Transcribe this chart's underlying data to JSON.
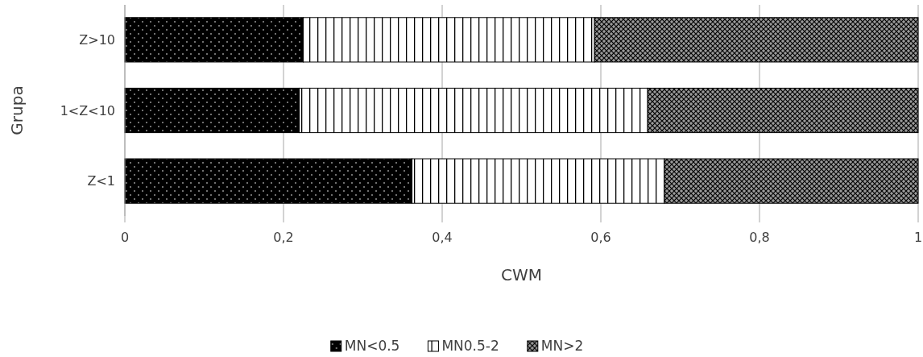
{
  "chart_data": {
    "type": "bar",
    "orientation": "horizontal",
    "stacked": true,
    "xlabel": "CWM",
    "ylabel": "Grupa",
    "categories": [
      "Z>10",
      "1<Z<10",
      "Z<1"
    ],
    "series": [
      {
        "name": "MN<0.5",
        "color": "#000000",
        "values": [
          0.225,
          0.22,
          0.362
        ]
      },
      {
        "name": "MN0.5-2",
        "color": "#000000",
        "values": [
          0.367,
          0.439,
          0.318
        ]
      },
      {
        "name": "MN>2",
        "color": "#000000",
        "values": [
          0.408,
          0.341,
          0.32
        ]
      }
    ],
    "xlim": [
      0,
      1
    ],
    "xticks": [
      0,
      {
        "value": 0.2,
        "label": "0,2"
      },
      {
        "value": 0.4,
        "label": "0,4"
      },
      {
        "value": 0.6,
        "label": "0,6"
      },
      {
        "value": 0.8,
        "label": "0,8"
      },
      1
    ],
    "grid": "x",
    "legend": "bottom"
  }
}
